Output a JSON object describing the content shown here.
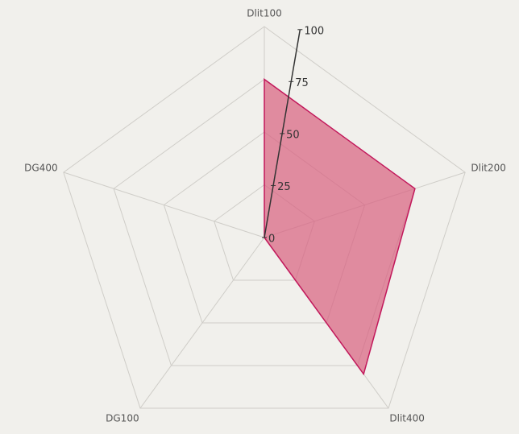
{
  "chart_data": {
    "type": "radar",
    "categories": [
      "Dlit100",
      "Dlit200",
      "Dlit400",
      "DG100",
      "DG400"
    ],
    "values": [
      75,
      75,
      80,
      0,
      0
    ],
    "color": "#d9607f",
    "rlim": [
      0,
      100
    ],
    "rticks": [
      0,
      25,
      50,
      75,
      100
    ],
    "grid": true
  }
}
